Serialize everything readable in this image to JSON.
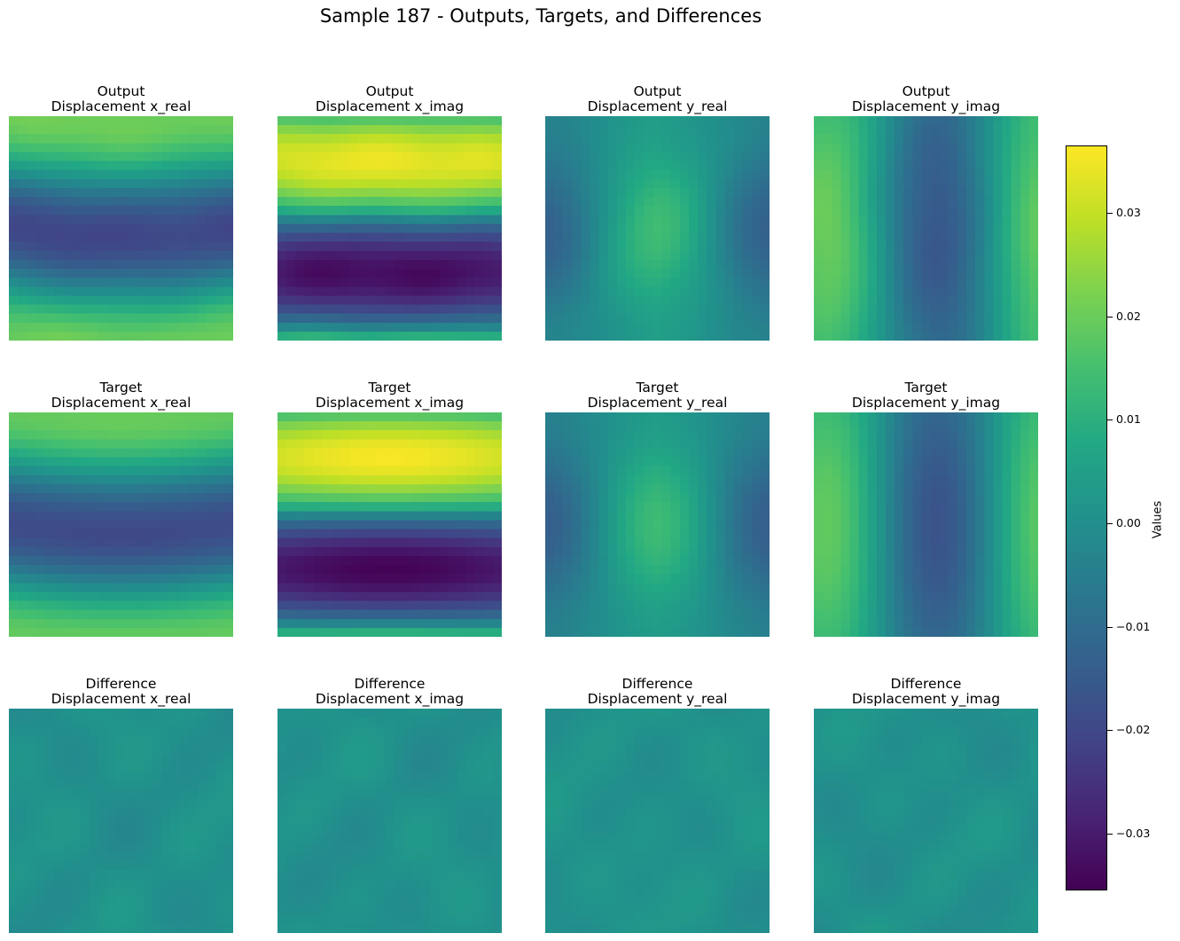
{
  "figure": {
    "title": "Sample 187 - Outputs, Targets, and Differences"
  },
  "chart_data": {
    "type": "heatmap",
    "title": "Sample 187 - Outputs, Targets, and Differences",
    "grid_size": [
      25,
      25
    ],
    "colormap": "viridis",
    "colorbar": {
      "label": "Values",
      "range": [
        -0.0355,
        0.0365
      ],
      "ticks": [
        0.03,
        0.02,
        0.01,
        0.0,
        -0.01,
        -0.02,
        -0.03
      ],
      "tick_labels": [
        "0.03",
        "0.02",
        "0.01",
        "0.00",
        "−0.01",
        "−0.02",
        "−0.03"
      ]
    },
    "rows": [
      "Output",
      "Target",
      "Difference"
    ],
    "columns": [
      "Displacement x_real",
      "Displacement x_imag",
      "Displacement y_real",
      "Displacement y_imag"
    ],
    "panels": [
      {
        "row": "Output",
        "label": "Displacement x_real",
        "field": "x_real",
        "value_range": [
          -0.022,
          0.022
        ]
      },
      {
        "row": "Output",
        "label": "Displacement x_imag",
        "field": "x_imag",
        "value_range": [
          -0.034,
          0.035
        ]
      },
      {
        "row": "Output",
        "label": "Displacement y_real",
        "field": "y_real",
        "value_range": [
          -0.016,
          0.02
        ]
      },
      {
        "row": "Output",
        "label": "Displacement y_imag",
        "field": "y_imag",
        "value_range": [
          -0.018,
          0.022
        ]
      },
      {
        "row": "Target",
        "label": "Displacement x_real",
        "field": "x_real",
        "value_range": [
          -0.021,
          0.021
        ]
      },
      {
        "row": "Target",
        "label": "Displacement x_imag",
        "field": "x_imag",
        "value_range": [
          -0.035,
          0.036
        ]
      },
      {
        "row": "Target",
        "label": "Displacement y_real",
        "field": "y_real",
        "value_range": [
          -0.017,
          0.02
        ]
      },
      {
        "row": "Target",
        "label": "Displacement y_imag",
        "field": "y_imag",
        "value_range": [
          -0.019,
          0.021
        ]
      },
      {
        "row": "Difference",
        "label": "Displacement x_real",
        "field": "x_real",
        "value_range": [
          -0.003,
          0.004
        ]
      },
      {
        "row": "Difference",
        "label": "Displacement x_imag",
        "field": "x_imag",
        "value_range": [
          -0.003,
          0.004
        ]
      },
      {
        "row": "Difference",
        "label": "Displacement y_real",
        "field": "y_real",
        "value_range": [
          -0.002,
          0.004
        ]
      },
      {
        "row": "Difference",
        "label": "Displacement y_imag",
        "field": "y_imag",
        "value_range": [
          -0.003,
          0.004
        ]
      }
    ]
  }
}
